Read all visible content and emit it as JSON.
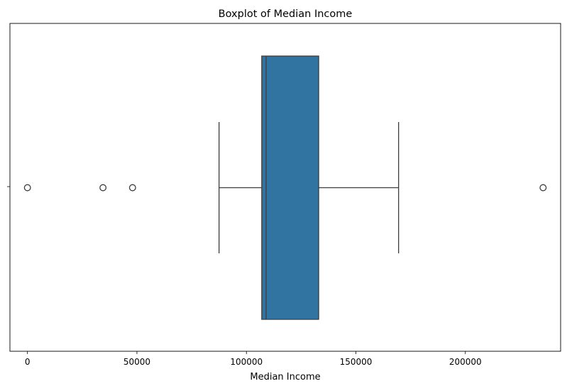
{
  "chart_data": {
    "type": "boxplot",
    "title": "Boxplot of Median Income",
    "xlabel": "Median Income",
    "ylabel": "",
    "orientation": "horizontal",
    "xlim": [
      -8000,
      243500
    ],
    "x_ticks": [
      0,
      50000,
      100000,
      150000,
      200000
    ],
    "x_tick_labels": [
      "0",
      "50000",
      "100000",
      "150000",
      "200000"
    ],
    "grid": false,
    "box": {
      "whisker_low": 87500,
      "q1": 107000,
      "median": 109000,
      "q3": 133000,
      "whisker_high": 169500,
      "outliers": [
        0,
        34500,
        48000,
        235500
      ]
    },
    "box_color": "#3274a1",
    "line_color": "#3d3d3d"
  }
}
